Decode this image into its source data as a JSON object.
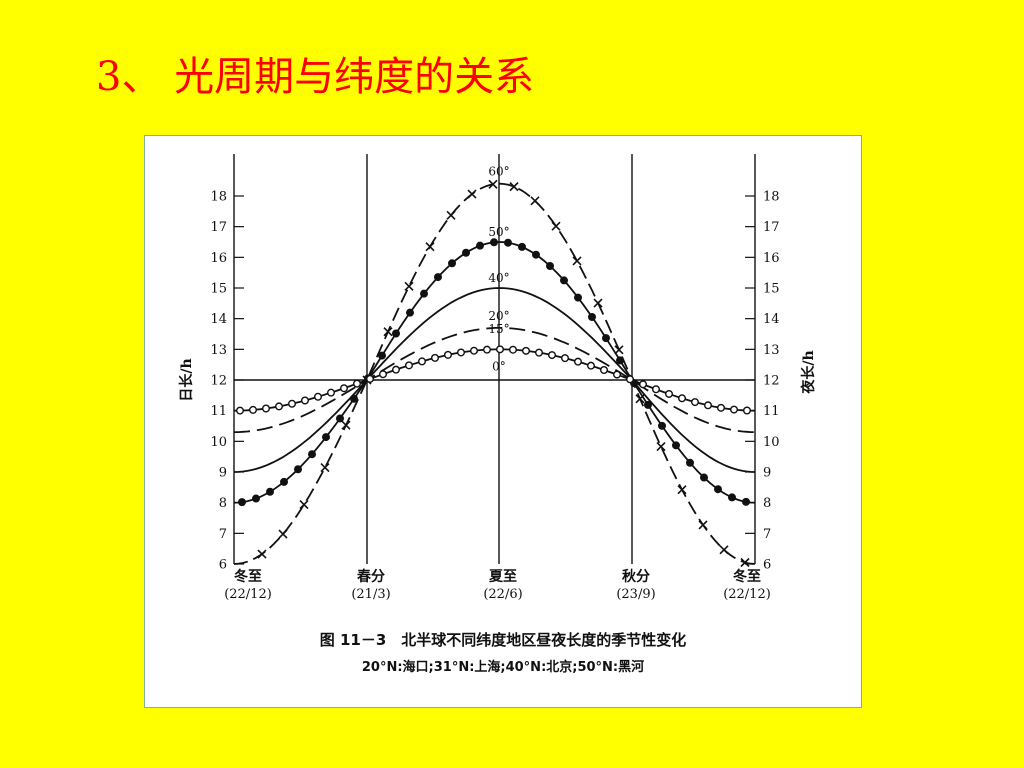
{
  "slide": {
    "title": "3、 光周期与纬度的关系"
  },
  "chart_data": {
    "type": "line",
    "ylabel_left": "日长/h",
    "ylabel_right": "夜长/h",
    "ylim": [
      6,
      18
    ],
    "left_ticks": [
      6,
      7,
      8,
      9,
      10,
      11,
      12,
      13,
      14,
      15,
      16,
      17,
      18
    ],
    "right_ticks": [
      18,
      17,
      16,
      15,
      14,
      13,
      12,
      11,
      10,
      9,
      8,
      7,
      6
    ],
    "categories": [
      {
        "name": "冬至",
        "date": "(22/12)"
      },
      {
        "name": "春分",
        "date": "(21/3)"
      },
      {
        "name": "夏至",
        "date": "(22/6)"
      },
      {
        "name": "秋分",
        "date": "(23/9)"
      },
      {
        "name": "冬至",
        "date": "(22/12)"
      }
    ],
    "reference_line_y": 12,
    "series": [
      {
        "name": "60°",
        "style": "dash-cross",
        "values": [
          6.0,
          12,
          18.4,
          12,
          6.0
        ]
      },
      {
        "name": "50°",
        "style": "solid-dot",
        "values": [
          8.0,
          12,
          16.5,
          12,
          8.0
        ]
      },
      {
        "name": "40°",
        "style": "solid",
        "values": [
          9.0,
          12,
          15.0,
          12,
          9.0
        ]
      },
      {
        "name": "20°",
        "style": "dash",
        "values": [
          10.3,
          12,
          13.7,
          12,
          10.3
        ]
      },
      {
        "name": "15°",
        "style": "none",
        "values": [
          10.9,
          12,
          13.4,
          12,
          10.9
        ]
      },
      {
        "name": "0°",
        "style": "solid-circle",
        "values": [
          11.0,
          12,
          13.0,
          12,
          11.0
        ]
      }
    ],
    "caption": "图 11－3　北半球不同纬度地区昼夜长度的季节性变化",
    "caption_sub": "20°N:海口;31°N:上海;40°N:北京;50°N:黑河"
  }
}
